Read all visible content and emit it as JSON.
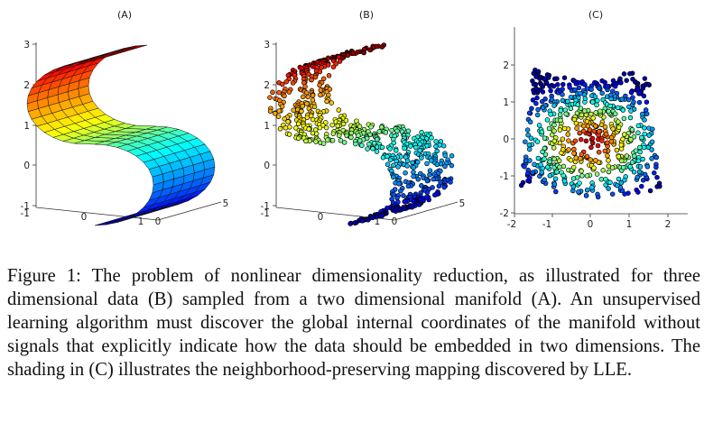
{
  "figure": {
    "panels": [
      {
        "title": "(A)",
        "kind": "s-curve manifold surface",
        "ticks": {
          "z": [
            "3",
            "2",
            "1",
            "0",
            "-1"
          ],
          "y": [
            "0",
            "1"
          ],
          "x": [
            "0",
            "5"
          ],
          "corner": "-1"
        }
      },
      {
        "title": "(B)",
        "kind": "3d scatter of samples on s-curve",
        "ticks": {
          "z": [
            "3",
            "2",
            "1",
            "0",
            "-1"
          ],
          "y": [
            "0",
            "1"
          ],
          "x": [
            "0",
            "5"
          ],
          "corner": "-1"
        }
      },
      {
        "title": "(C)",
        "kind": "2d embedding scatter",
        "ticks": {
          "y": [
            "2",
            "1",
            "0",
            "-1",
            "-2"
          ],
          "x": [
            "-2",
            "-1",
            "0",
            "1",
            "2"
          ]
        }
      }
    ],
    "colormap": [
      "#00008f",
      "#0000ff",
      "#0080ff",
      "#00ffff",
      "#80ff80",
      "#ffff00",
      "#ff8000",
      "#ff0000",
      "#800000"
    ]
  },
  "caption": "Figure 1: The problem of nonlinear dimensionality reduction, as illustrated for three dimensional data (B) sampled from a two dimensional manifold (A). An unsupervised learning algorithm must discover the global internal coordinates of the manifold without signals that explicitly indicate how the data should be embedded in two dimensions. The shading in (C) illustrates the neighborhood-preserving mapping discovered by LLE."
}
